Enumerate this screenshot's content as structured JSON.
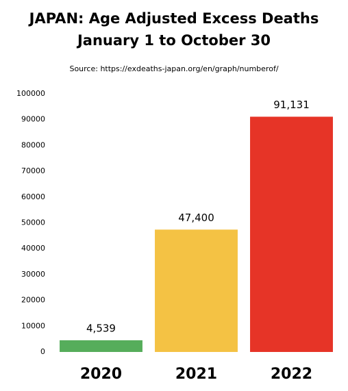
{
  "chart_data": {
    "type": "bar",
    "title": [
      "JAPAN: Age Adjusted Excess Deaths",
      "January 1 to October 30"
    ],
    "source": "Source: https://exdeaths-japan.org/en/graph/numberof/",
    "categories": [
      "2020",
      "2021",
      "2022"
    ],
    "values": [
      4539,
      47400,
      91131
    ],
    "value_labels": [
      "4,539",
      "47,400",
      "91,131"
    ],
    "colors": [
      "#56ad5b",
      "#f4c244",
      "#e63427"
    ],
    "ylim": [
      0,
      100000
    ],
    "yticks": [
      0,
      10000,
      20000,
      30000,
      40000,
      50000,
      60000,
      70000,
      80000,
      90000,
      100000
    ],
    "grid": false
  }
}
